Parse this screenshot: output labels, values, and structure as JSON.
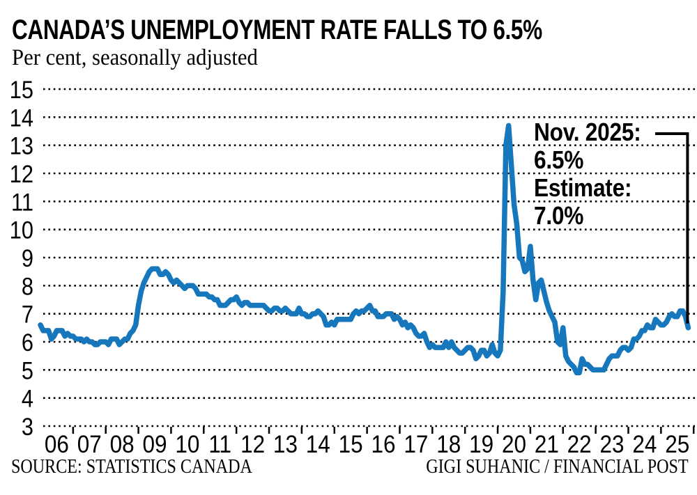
{
  "chart_data": {
    "type": "line",
    "title": "CANADA’S UNEMPLOYMENT RATE FALLS TO 6.5%",
    "subtitle": "Per cent, seasonally adjusted",
    "xlabel": "",
    "ylabel": "Per cent",
    "ylim": [
      3,
      15
    ],
    "grid": "dotted-horizontal",
    "legend": "none",
    "line_color": "#1777BC",
    "frequency": "monthly",
    "x_start": "2006-01",
    "x_end": "2025-11",
    "x_tick_labels": [
      "06",
      "07",
      "08",
      "09",
      "10",
      "11",
      "12",
      "13",
      "14",
      "15",
      "16",
      "17",
      "18",
      "19",
      "20",
      "21",
      "22",
      "23",
      "24",
      "25"
    ],
    "y_ticks": [
      3,
      4,
      5,
      6,
      7,
      8,
      9,
      10,
      11,
      12,
      13,
      14,
      15
    ],
    "annotation": {
      "lines": [
        "Nov. 2025:",
        "6.5%",
        "Estimate:",
        "7.0%"
      ],
      "target_value": 6.5
    },
    "values": [
      6.6,
      6.4,
      6.4,
      6.4,
      6.1,
      6.2,
      6.4,
      6.4,
      6.4,
      6.2,
      6.3,
      6.2,
      6.2,
      6.1,
      6.1,
      6.1,
      6.0,
      6.1,
      6.0,
      6.0,
      5.9,
      5.9,
      6.0,
      6.0,
      6.0,
      5.9,
      6.1,
      6.1,
      6.1,
      5.9,
      6.0,
      6.1,
      6.1,
      6.3,
      6.4,
      6.6,
      7.3,
      7.8,
      8.1,
      8.3,
      8.5,
      8.6,
      8.6,
      8.6,
      8.4,
      8.4,
      8.5,
      8.4,
      8.2,
      8.1,
      8.2,
      8.1,
      8.0,
      7.9,
      8.0,
      8.0,
      8.0,
      7.9,
      7.7,
      7.7,
      7.7,
      7.7,
      7.6,
      7.6,
      7.5,
      7.5,
      7.3,
      7.3,
      7.3,
      7.4,
      7.5,
      7.5,
      7.6,
      7.4,
      7.3,
      7.4,
      7.4,
      7.3,
      7.3,
      7.3,
      7.3,
      7.3,
      7.3,
      7.2,
      7.1,
      7.1,
      7.2,
      7.2,
      7.1,
      7.1,
      7.2,
      7.1,
      7.0,
      7.0,
      7.0,
      7.2,
      7.0,
      7.0,
      6.9,
      6.9,
      7.0,
      7.0,
      7.1,
      7.0,
      6.9,
      6.6,
      6.6,
      6.7,
      6.6,
      6.8,
      6.8,
      6.8,
      6.8,
      6.8,
      6.8,
      7.0,
      7.1,
      7.0,
      7.1,
      7.1,
      7.2,
      7.3,
      7.1,
      7.1,
      6.9,
      6.9,
      6.9,
      7.0,
      7.0,
      7.0,
      6.8,
      6.9,
      6.8,
      6.6,
      6.7,
      6.5,
      6.6,
      6.5,
      6.3,
      6.2,
      6.2,
      6.3,
      6.0,
      5.8,
      5.9,
      5.8,
      5.8,
      5.8,
      5.8,
      6.0,
      5.8,
      6.0,
      5.8,
      5.7,
      5.6,
      5.6,
      5.7,
      5.8,
      5.8,
      5.7,
      5.4,
      5.5,
      5.7,
      5.7,
      5.5,
      5.6,
      5.9,
      5.6,
      5.5,
      5.7,
      7.8,
      13.0,
      13.7,
      12.3,
      10.9,
      10.2,
      9.0,
      8.9,
      8.5,
      8.6,
      9.4,
      8.2,
      7.5,
      8.1,
      8.2,
      7.8,
      7.4,
      7.1,
      6.9,
      6.7,
      6.0,
      5.9,
      6.5,
      5.5,
      5.3,
      5.2,
      5.1,
      4.9,
      4.9,
      5.4,
      5.2,
      5.2,
      5.1,
      5.0,
      5.0,
      5.0,
      5.0,
      5.0,
      5.2,
      5.4,
      5.5,
      5.5,
      5.5,
      5.7,
      5.8,
      5.8,
      5.7,
      5.8,
      6.1,
      6.1,
      6.2,
      6.4,
      6.4,
      6.6,
      6.5,
      6.5,
      6.8,
      6.7,
      6.6,
      6.6,
      6.7,
      6.9,
      7.0,
      6.9,
      6.9,
      7.1,
      7.1,
      6.9,
      6.5
    ]
  },
  "footer": {
    "source": "SOURCE: STATISTICS CANADA",
    "credit": "GIGI SUHANIC / FINANCIAL POST"
  },
  "colors": {
    "line": "#1777BC",
    "text": "#000000",
    "background": "#FFFFFF"
  }
}
